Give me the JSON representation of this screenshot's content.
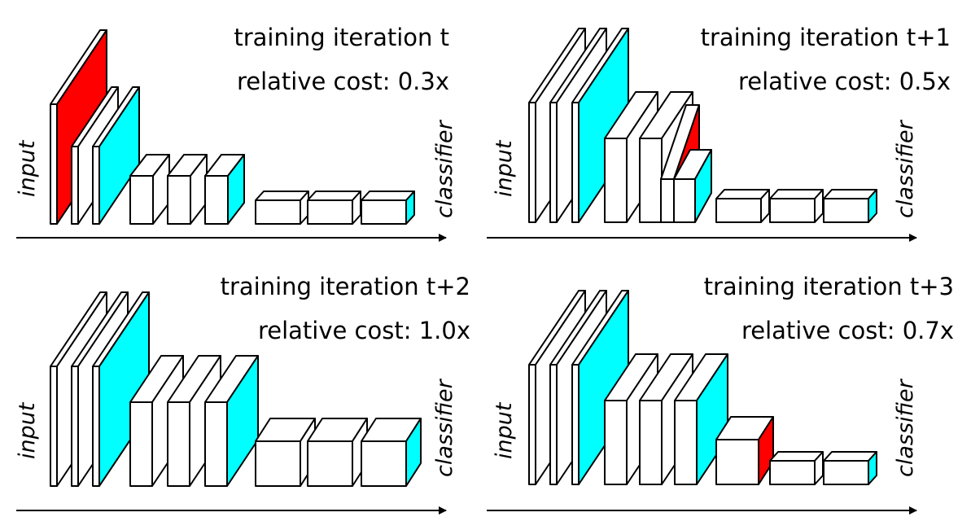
{
  "colors": {
    "white": "#ffffff",
    "cyan": "#00ffff",
    "red": "#ff0000",
    "stroke": "#000000"
  },
  "labels": {
    "input": "input",
    "classifier": "classifier"
  },
  "panels": [
    {
      "title": "training iteration t",
      "cost": "relative cost: 0.3x",
      "blocks": [
        {
          "fill": "red"
        },
        {
          "fill": "white"
        },
        {
          "fill": "cyan"
        },
        {
          "fill": "white"
        },
        {
          "fill": "white"
        },
        {
          "fill": "cyan"
        },
        {
          "fill": "white"
        },
        {
          "fill": "white"
        },
        {
          "fill": "cyan"
        }
      ]
    },
    {
      "title": "training iteration t+1",
      "cost": "relative cost: 0.5x",
      "blocks": [
        {
          "fill": "white"
        },
        {
          "fill": "white"
        },
        {
          "fill": "cyan"
        },
        {
          "fill": "white"
        },
        {
          "fill": "white"
        },
        {
          "fill": "red"
        },
        {
          "fill": "cyan"
        },
        {
          "fill": "white"
        },
        {
          "fill": "white"
        },
        {
          "fill": "cyan"
        }
      ]
    },
    {
      "title": "training iteration t+2",
      "cost": "relative cost: 1.0x",
      "blocks": [
        {
          "fill": "white"
        },
        {
          "fill": "white"
        },
        {
          "fill": "cyan"
        },
        {
          "fill": "white"
        },
        {
          "fill": "white"
        },
        {
          "fill": "cyan"
        },
        {
          "fill": "white"
        },
        {
          "fill": "white"
        },
        {
          "fill": "cyan"
        }
      ]
    },
    {
      "title": "training iteration t+3",
      "cost": "relative cost: 0.7x",
      "blocks": [
        {
          "fill": "white"
        },
        {
          "fill": "white"
        },
        {
          "fill": "cyan"
        },
        {
          "fill": "white"
        },
        {
          "fill": "white"
        },
        {
          "fill": "cyan"
        },
        {
          "fill": "red"
        },
        {
          "fill": "white"
        },
        {
          "fill": "cyan"
        }
      ]
    }
  ]
}
